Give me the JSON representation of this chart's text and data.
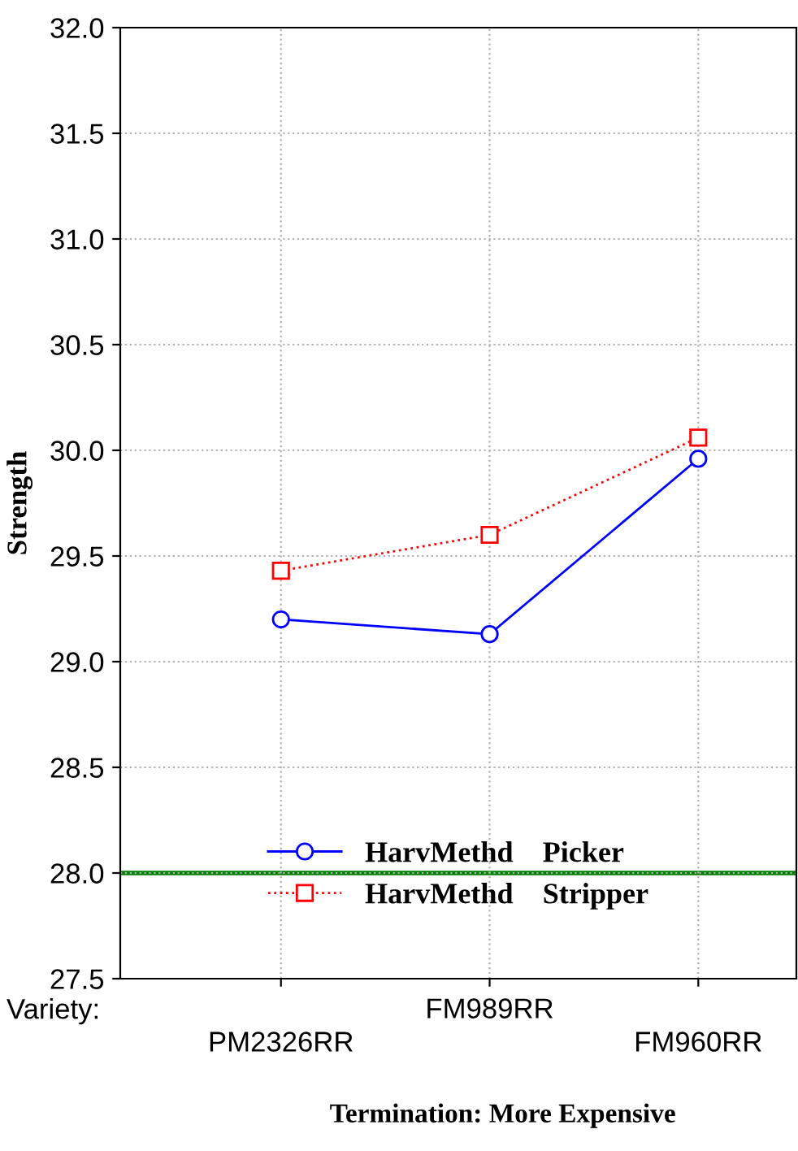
{
  "chart_data": {
    "type": "line",
    "ylabel": "Strength",
    "xlabel": "Variety:",
    "categories": [
      "PM2326RR",
      "FM989RR",
      "FM960RR"
    ],
    "series": [
      {
        "name": "HarvMethd    Picker",
        "color": "#0000ff",
        "values": [
          29.2,
          29.13,
          29.96
        ],
        "marker": "circle",
        "line_style": "solid"
      },
      {
        "name": "HarvMethd    Stripper",
        "color": "#ff0000",
        "values": [
          29.43,
          29.6,
          30.06
        ],
        "marker": "square",
        "line_style": "dotted"
      }
    ],
    "ylim": [
      27.5,
      32.0
    ],
    "yticks": [
      {
        "value": 27.5,
        "label": "27.5"
      },
      {
        "value": 28.0,
        "label": "28.0"
      },
      {
        "value": 28.5,
        "label": "28.5"
      },
      {
        "value": 29.0,
        "label": "29.0"
      },
      {
        "value": 29.5,
        "label": "29.5"
      },
      {
        "value": 30.0,
        "label": "30.0"
      },
      {
        "value": 30.5,
        "label": "30.5"
      },
      {
        "value": 31.0,
        "label": "31.0"
      },
      {
        "value": 31.5,
        "label": "31.5"
      },
      {
        "value": 32.0,
        "label": "32.0"
      }
    ],
    "ref_lines": [
      {
        "axis": "y",
        "value": 28.0,
        "color": "#008000",
        "line_style": "solid"
      }
    ],
    "grid": true,
    "legend": "bottom",
    "annotations": [
      "Termination: More Expensive"
    ]
  }
}
